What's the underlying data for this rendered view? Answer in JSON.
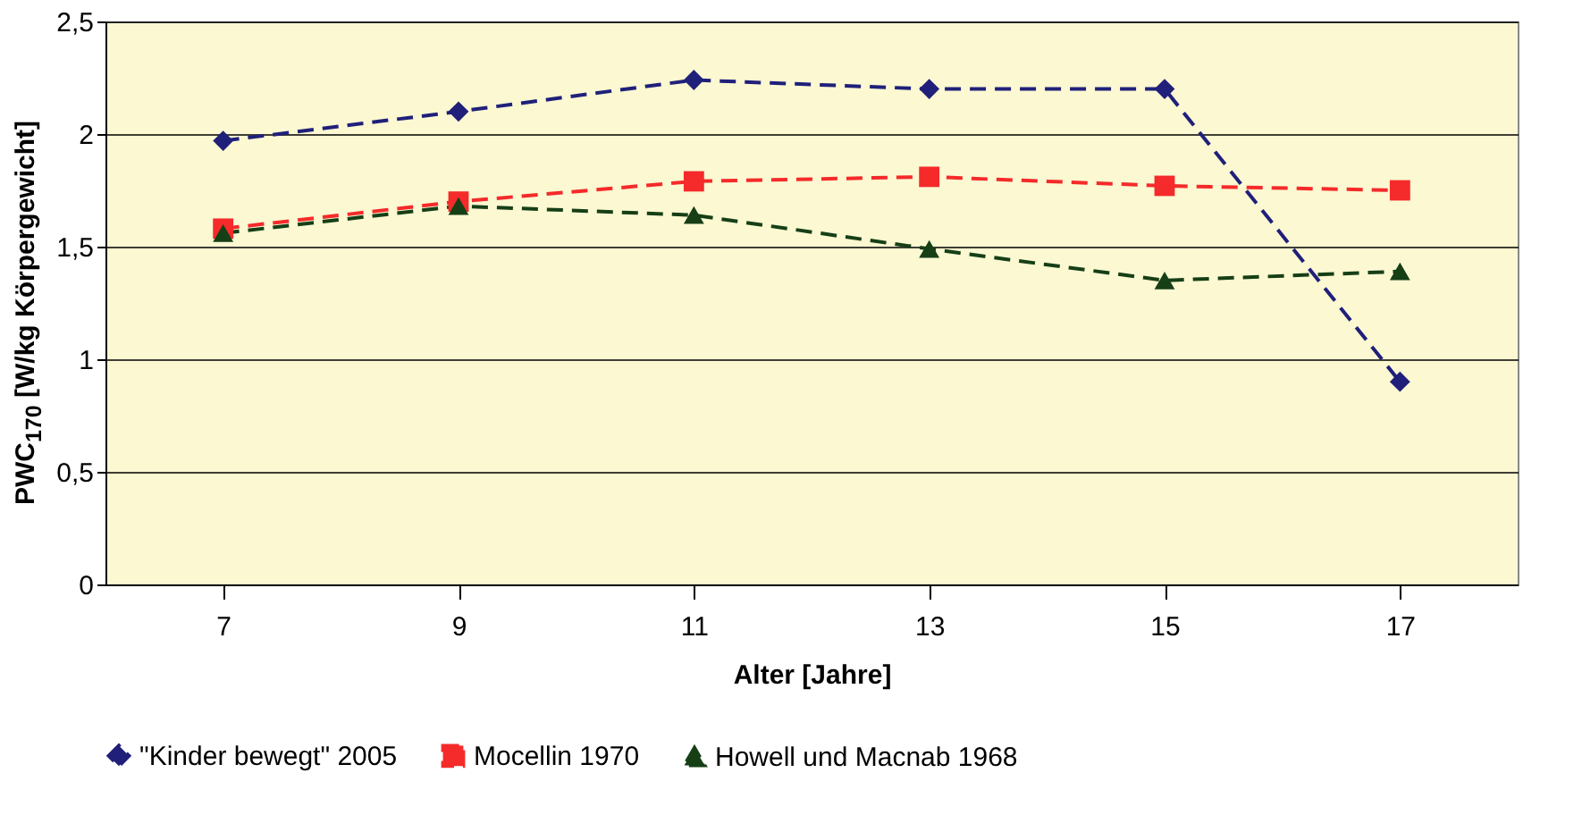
{
  "chart_data": {
    "type": "line",
    "xlabel": "Alter [Jahre]",
    "ylabel": "PWC$_{170}$ [W/kg Körpergewicht]",
    "categories": [
      "7",
      "9",
      "11",
      "13",
      "15",
      "17"
    ],
    "ylim": [
      0,
      2.5
    ],
    "yticks": [
      0,
      {
        "value": 0.5,
        "label": "0,5"
      },
      1,
      {
        "value": 1.5,
        "label": "1,5"
      },
      2,
      {
        "value": 2.5,
        "label": "2,5"
      }
    ],
    "grid": "y",
    "legend": "bottom",
    "line_style": "dashed",
    "series": [
      {
        "name": "\"Kinder bewegt\" 2005",
        "color": "#20207a",
        "marker": "diamond",
        "values": [
          1.97,
          2.1,
          2.24,
          2.2,
          2.2,
          0.9
        ]
      },
      {
        "name": "Mocellin 1970",
        "color": "#f52a2a",
        "marker": "square",
        "values": [
          1.58,
          1.7,
          1.79,
          1.81,
          1.77,
          1.75
        ]
      },
      {
        "name": "Howell und Macnab 1968",
        "color": "#163f16",
        "marker": "triangle",
        "values": [
          1.56,
          1.68,
          1.64,
          1.49,
          1.35,
          1.39
        ]
      }
    ]
  }
}
